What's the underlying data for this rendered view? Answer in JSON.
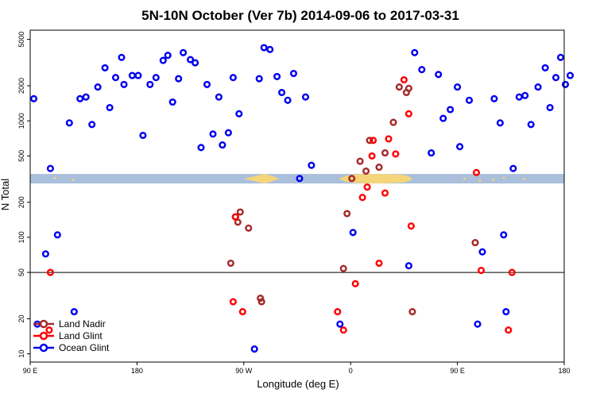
{
  "chart_data": {
    "type": "scatter",
    "title": "5N-10N October (Ver 7b)   2014-09-06 to 2017-03-31",
    "xlabel": "Longitude (deg E)",
    "ylabel": "N Total",
    "y_scale": "log",
    "ylim": [
      8.5,
      6000
    ],
    "xlim": [
      90,
      540
    ],
    "x_ticks": [
      {
        "value": 90,
        "label": "90 E"
      },
      {
        "value": 180,
        "label": "180"
      },
      {
        "value": 270,
        "label": "90 W"
      },
      {
        "value": 360,
        "label": "0"
      },
      {
        "value": 450,
        "label": "90 E"
      },
      {
        "value": 540,
        "label": "180"
      }
    ],
    "y_ticks": [
      10,
      20,
      50,
      100,
      200,
      500,
      1000,
      2000,
      5000
    ],
    "reference_line_y": 50,
    "land_strip": {
      "ymin": 290,
      "ymax": 350
    },
    "legend": {
      "position": "bottom-left"
    },
    "series": [
      {
        "name": "Land Nadir",
        "color": "#a52a2a",
        "points": [
          [
            259,
            60
          ],
          [
            263,
            150
          ],
          [
            265,
            135
          ],
          [
            267,
            165
          ],
          [
            274,
            120
          ],
          [
            284,
            30
          ],
          [
            285,
            28
          ],
          [
            354,
            54
          ],
          [
            357,
            160
          ],
          [
            361,
            320
          ],
          [
            368,
            450
          ],
          [
            373,
            370
          ],
          [
            376,
            680
          ],
          [
            384,
            400
          ],
          [
            389,
            530
          ],
          [
            396,
            970
          ],
          [
            401,
            1950
          ],
          [
            407,
            1750
          ],
          [
            409,
            1900
          ],
          [
            412,
            23
          ],
          [
            465,
            90
          ]
        ]
      },
      {
        "name": "Land Glint",
        "color": "#ff0000",
        "points": [
          [
            106,
            16
          ],
          [
            107,
            50
          ],
          [
            261,
            28
          ],
          [
            263,
            150
          ],
          [
            269,
            23
          ],
          [
            349,
            23
          ],
          [
            354,
            16
          ],
          [
            364,
            40
          ],
          [
            370,
            220
          ],
          [
            374,
            270
          ],
          [
            378,
            500
          ],
          [
            379,
            680
          ],
          [
            384,
            60
          ],
          [
            389,
            240
          ],
          [
            392,
            700
          ],
          [
            398,
            520
          ],
          [
            405,
            2250
          ],
          [
            409,
            1150
          ],
          [
            411,
            125
          ],
          [
            466,
            360
          ],
          [
            470,
            52
          ],
          [
            493,
            16
          ],
          [
            496,
            50
          ]
        ]
      },
      {
        "name": "Ocean Glint",
        "color": "#0000ee",
        "points": [
          [
            93,
            1550
          ],
          [
            96,
            18
          ],
          [
            103,
            72
          ],
          [
            107,
            390
          ],
          [
            113,
            105
          ],
          [
            123,
            960
          ],
          [
            127,
            23
          ],
          [
            132,
            1550
          ],
          [
            137,
            1600
          ],
          [
            142,
            930
          ],
          [
            147,
            1950
          ],
          [
            153,
            2850
          ],
          [
            157,
            1300
          ],
          [
            162,
            2350
          ],
          [
            167,
            3500
          ],
          [
            169,
            2050
          ],
          [
            176,
            2450
          ],
          [
            181,
            2450
          ],
          [
            185,
            750
          ],
          [
            191,
            2050
          ],
          [
            196,
            2350
          ],
          [
            202,
            3300
          ],
          [
            206,
            3650
          ],
          [
            210,
            1450
          ],
          [
            215,
            2300
          ],
          [
            219,
            3850
          ],
          [
            225,
            3350
          ],
          [
            229,
            3150
          ],
          [
            234,
            590
          ],
          [
            239,
            2050
          ],
          [
            244,
            770
          ],
          [
            249,
            1600
          ],
          [
            252,
            620
          ],
          [
            257,
            790
          ],
          [
            261,
            2350
          ],
          [
            266,
            1150
          ],
          [
            279,
            11
          ],
          [
            283,
            2300
          ],
          [
            287,
            4250
          ],
          [
            292,
            4100
          ],
          [
            298,
            2400
          ],
          [
            302,
            1750
          ],
          [
            307,
            1500
          ],
          [
            312,
            2550
          ],
          [
            317,
            320
          ],
          [
            322,
            1600
          ],
          [
            327,
            415
          ],
          [
            351,
            18
          ],
          [
            362,
            110
          ],
          [
            409,
            57
          ],
          [
            414,
            3850
          ],
          [
            420,
            2750
          ],
          [
            428,
            530
          ],
          [
            434,
            2500
          ],
          [
            438,
            1050
          ],
          [
            444,
            1250
          ],
          [
            450,
            1950
          ],
          [
            452,
            600
          ],
          [
            460,
            1500
          ],
          [
            467,
            18
          ],
          [
            471,
            75
          ],
          [
            481,
            1550
          ],
          [
            486,
            960
          ],
          [
            489,
            105
          ],
          [
            491,
            23
          ],
          [
            497,
            390
          ],
          [
            502,
            1600
          ],
          [
            507,
            1650
          ],
          [
            512,
            930
          ],
          [
            518,
            1950
          ],
          [
            524,
            2850
          ],
          [
            528,
            1300
          ],
          [
            533,
            2350
          ],
          [
            537,
            3500
          ],
          [
            541,
            2050
          ],
          [
            545,
            2450
          ]
        ]
      }
    ]
  }
}
